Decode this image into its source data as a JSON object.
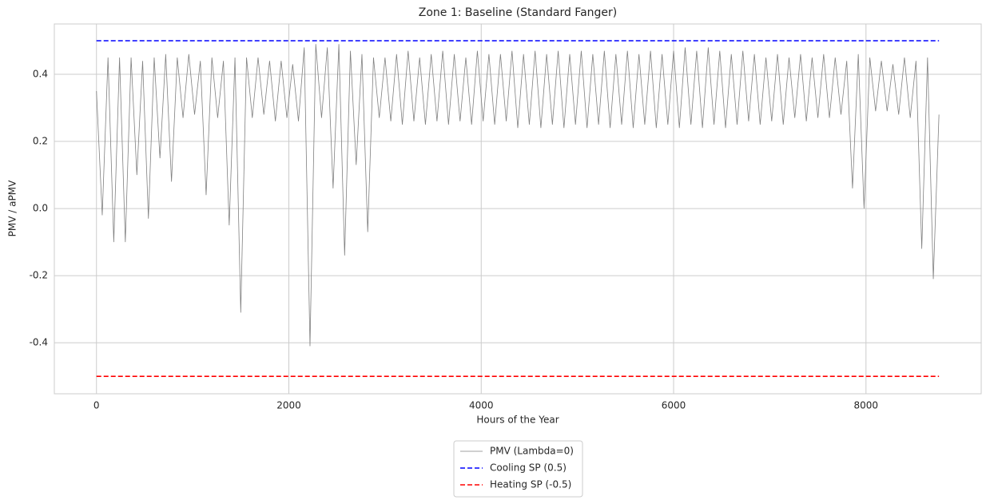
{
  "chart_data": {
    "type": "line",
    "title": "Zone 1: Baseline (Standard Fanger)",
    "x_label": "Hours of the Year",
    "y_label": "PMV / aPMV",
    "xlim": [
      -438,
      9198
    ],
    "ylim": [
      -0.552,
      0.55
    ],
    "xticks": [
      0,
      2000,
      4000,
      6000,
      8000
    ],
    "yticks": [
      -0.4,
      -0.2,
      {
        "value": 0,
        "label": "0.0"
      },
      0.2,
      0.4
    ],
    "grid": true,
    "legend": "below",
    "series": [
      {
        "name": "PMV (Lambda=0)",
        "color": "#808080",
        "style": "solid",
        "width": 0.8,
        "x": [
          0,
          60,
          120,
          180,
          240,
          300,
          360,
          420,
          480,
          540,
          600,
          660,
          720,
          780,
          840,
          900,
          960,
          1020,
          1080,
          1140,
          1200,
          1260,
          1320,
          1380,
          1440,
          1500,
          1560,
          1620,
          1680,
          1740,
          1800,
          1860,
          1920,
          1980,
          2040,
          2100,
          2160,
          2220,
          2280,
          2340,
          2400,
          2460,
          2520,
          2580,
          2640,
          2700,
          2760,
          2820,
          2880,
          2940,
          3000,
          3060,
          3120,
          3180,
          3240,
          3300,
          3360,
          3420,
          3480,
          3540,
          3600,
          3660,
          3720,
          3780,
          3840,
          3900,
          3960,
          4020,
          4080,
          4140,
          4200,
          4260,
          4320,
          4380,
          4440,
          4500,
          4560,
          4620,
          4680,
          4740,
          4800,
          4860,
          4920,
          4980,
          5040,
          5100,
          5160,
          5220,
          5280,
          5340,
          5400,
          5460,
          5520,
          5580,
          5640,
          5700,
          5760,
          5820,
          5880,
          5940,
          6000,
          6060,
          6120,
          6180,
          6240,
          6300,
          6360,
          6420,
          6480,
          6540,
          6600,
          6660,
          6720,
          6780,
          6840,
          6900,
          6960,
          7020,
          7080,
          7140,
          7200,
          7260,
          7320,
          7380,
          7440,
          7500,
          7560,
          7620,
          7680,
          7740,
          7800,
          7860,
          7920,
          7980,
          8040,
          8100,
          8160,
          8220,
          8280,
          8340,
          8400,
          8460,
          8520,
          8580,
          8640,
          8700,
          8759
        ],
        "values": [
          0.35,
          -0.02,
          0.45,
          -0.1,
          0.45,
          -0.1,
          0.45,
          0.1,
          0.44,
          -0.03,
          0.45,
          0.15,
          0.46,
          0.08,
          0.45,
          0.27,
          0.46,
          0.28,
          0.44,
          0.04,
          0.45,
          0.27,
          0.44,
          -0.05,
          0.45,
          -0.31,
          0.45,
          0.27,
          0.45,
          0.28,
          0.44,
          0.26,
          0.44,
          0.27,
          0.43,
          0.26,
          0.48,
          -0.41,
          0.49,
          0.27,
          0.48,
          0.06,
          0.49,
          -0.14,
          0.47,
          0.13,
          0.46,
          -0.07,
          0.45,
          0.27,
          0.45,
          0.26,
          0.46,
          0.25,
          0.47,
          0.26,
          0.45,
          0.25,
          0.46,
          0.26,
          0.47,
          0.25,
          0.46,
          0.26,
          0.45,
          0.25,
          0.47,
          0.26,
          0.46,
          0.25,
          0.46,
          0.26,
          0.47,
          0.24,
          0.46,
          0.25,
          0.47,
          0.24,
          0.46,
          0.25,
          0.47,
          0.24,
          0.46,
          0.25,
          0.47,
          0.24,
          0.46,
          0.25,
          0.47,
          0.24,
          0.46,
          0.25,
          0.47,
          0.24,
          0.46,
          0.25,
          0.47,
          0.24,
          0.46,
          0.25,
          0.47,
          0.24,
          0.48,
          0.25,
          0.47,
          0.24,
          0.48,
          0.25,
          0.47,
          0.24,
          0.46,
          0.25,
          0.47,
          0.26,
          0.46,
          0.25,
          0.45,
          0.26,
          0.46,
          0.25,
          0.45,
          0.27,
          0.46,
          0.26,
          0.45,
          0.27,
          0.46,
          0.27,
          0.45,
          0.28,
          0.44,
          0.06,
          0.46,
          0.0,
          0.45,
          0.29,
          0.44,
          0.29,
          0.43,
          0.28,
          0.45,
          0.27,
          0.44,
          -0.12,
          0.45,
          -0.21,
          0.28
        ]
      },
      {
        "name": "Cooling SP (0.5)",
        "color": "#0000ff",
        "style": "dashed",
        "width": 1.6,
        "x": [
          0,
          8759
        ],
        "values": [
          0.5,
          0.5
        ]
      },
      {
        "name": "Heating SP (-0.5)",
        "color": "#ff0000",
        "style": "dashed",
        "width": 1.6,
        "x": [
          0,
          8759
        ],
        "values": [
          -0.5,
          -0.5
        ]
      }
    ]
  }
}
